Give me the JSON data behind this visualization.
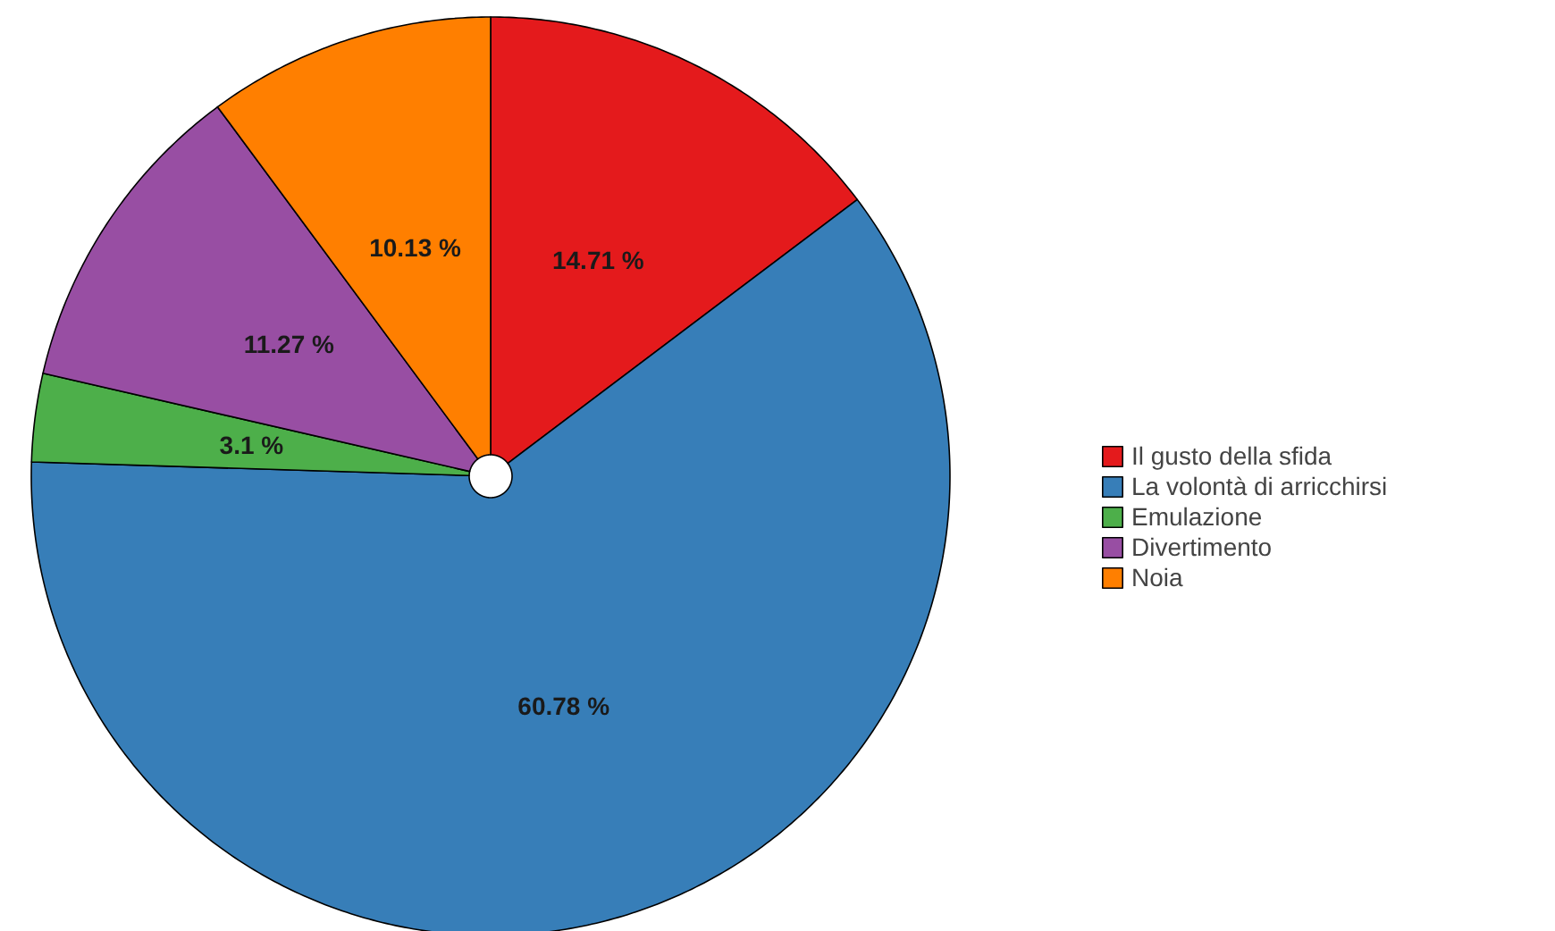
{
  "chart_data": {
    "type": "pie",
    "categories": [
      "Il gusto della sfida",
      "La volontà di arricchirsi",
      "Emulazione",
      "Divertimento",
      "Noia"
    ],
    "values": [
      14.71,
      60.78,
      3.1,
      11.27,
      10.13
    ],
    "colors": [
      "#e41a1c",
      "#377eb8",
      "#4daf4a",
      "#984ea3",
      "#ff7f00"
    ],
    "value_labels": [
      "14.71 %",
      "60.78 %",
      "3.1 %",
      "11.27 %",
      "10.13 %"
    ],
    "legend": "right"
  }
}
